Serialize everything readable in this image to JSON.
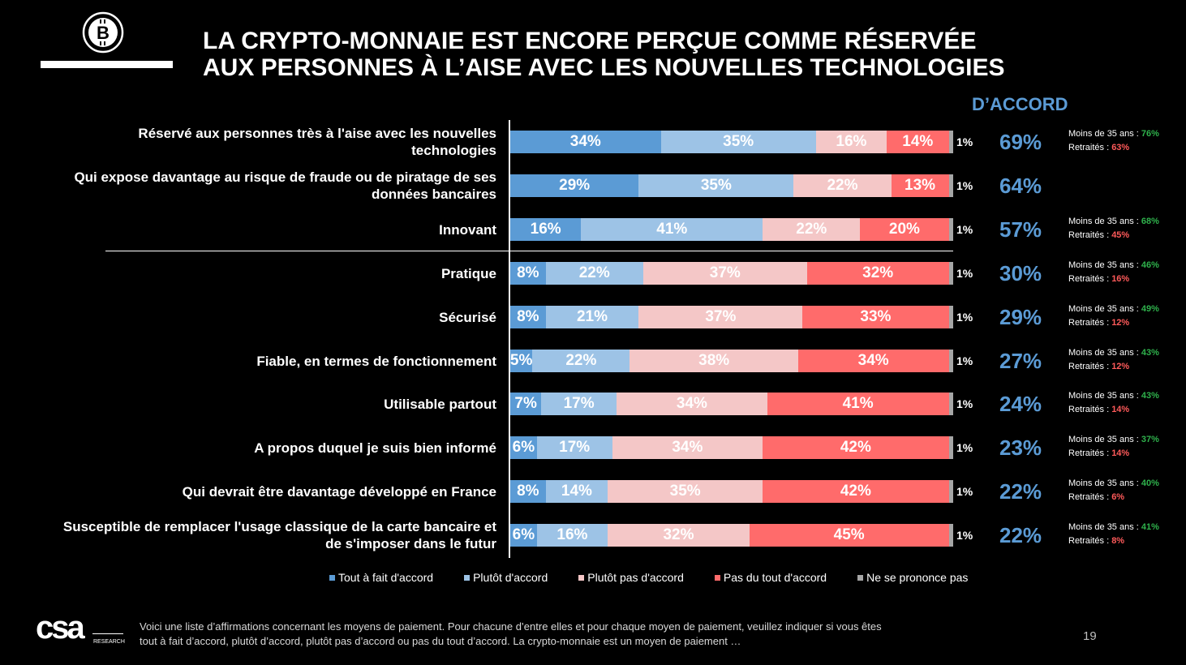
{
  "title": {
    "line1": "LA CRYPTO-MONNAIE EST ENCORE PERÇUE COMME RÉSERVÉE",
    "line2": "AUX PERSONNES À L’AISE AVEC LES NOUVELLES TECHNOLOGIES"
  },
  "accord_header": "D’ACCORD",
  "colors": {
    "tout_a_fait": "#5b9bd5",
    "plutot": "#9dc3e6",
    "plutot_pas": "#f4c7c7",
    "pas_du_tout": "#ff6b6b",
    "nsp": "#a6a6a6",
    "accent": "#5b9bd5"
  },
  "chart_data": {
    "type": "bar",
    "orientation": "horizontal-stacked-100",
    "unit": "%",
    "series_names": [
      "Tout à fait d'accord",
      "Plutôt d'accord",
      "Plutôt pas d'accord",
      "Pas du tout d'accord",
      "Ne se prononce pas"
    ],
    "rows": [
      {
        "label_lines": [
          "Réservé aux personnes très à l'aise avec les nouvelles",
          "technologies"
        ],
        "values": [
          34,
          35,
          16,
          14,
          1
        ],
        "labels": [
          "34%",
          "35%",
          "16%",
          "14%",
          "1%"
        ],
        "total": "69%",
        "sub_young": "Moins de 35 ans : ",
        "sub_young_val": "76%",
        "sub_ret": "Retraités : ",
        "sub_ret_val": "63%"
      },
      {
        "label_lines": [
          "Qui expose davantage au risque de fraude ou de piratage de ses",
          "données bancaires"
        ],
        "values": [
          29,
          35,
          22,
          13,
          1
        ],
        "labels": [
          "29%",
          "35%",
          "22%",
          "13%",
          "1%"
        ],
        "total": "64%"
      },
      {
        "label_lines": [
          "Innovant"
        ],
        "values": [
          16,
          41,
          22,
          20,
          1
        ],
        "labels": [
          "16%",
          "41%",
          "22%",
          "20%",
          "1%"
        ],
        "total": "57%",
        "sub_young": "Moins de 35 ans : ",
        "sub_young_val": "68%",
        "sub_ret": "Retraités : ",
        "sub_ret_val": "45%"
      },
      {
        "label_lines": [
          "Pratique"
        ],
        "values": [
          8,
          22,
          37,
          32,
          1
        ],
        "labels": [
          "8%",
          "22%",
          "37%",
          "32%",
          "1%"
        ],
        "total": "30%",
        "sub_young": "Moins de 35 ans : ",
        "sub_young_val": "46%",
        "sub_ret": "Retraités : ",
        "sub_ret_val": "16%"
      },
      {
        "label_lines": [
          "Sécurisé"
        ],
        "values": [
          8,
          21,
          37,
          33,
          1
        ],
        "labels": [
          "8%",
          "21%",
          "37%",
          "33%",
          "1%"
        ],
        "total": "29%",
        "sub_young": "Moins de 35 ans : ",
        "sub_young_val": "49%",
        "sub_ret": "Retraités : ",
        "sub_ret_val": "12%"
      },
      {
        "label_lines": [
          "Fiable, en termes de fonctionnement"
        ],
        "values": [
          5,
          22,
          38,
          34,
          1
        ],
        "labels": [
          "5%",
          "22%",
          "38%",
          "34%",
          "1%"
        ],
        "total": "27%",
        "sub_young": "Moins de 35 ans : ",
        "sub_young_val": "43%",
        "sub_ret": "Retraités : ",
        "sub_ret_val": "12%"
      },
      {
        "label_lines": [
          "Utilisable partout"
        ],
        "values": [
          7,
          17,
          34,
          41,
          1
        ],
        "labels": [
          "7%",
          "17%",
          "34%",
          "41%",
          "1%"
        ],
        "total": "24%",
        "sub_young": "Moins de 35 ans : ",
        "sub_young_val": "43%",
        "sub_ret": "Retraités : ",
        "sub_ret_val": "14%"
      },
      {
        "label_lines": [
          "A propos duquel je suis bien informé"
        ],
        "values": [
          6,
          17,
          34,
          42,
          1
        ],
        "labels": [
          "6%",
          "17%",
          "34%",
          "42%",
          "1%"
        ],
        "total": "23%",
        "sub_young": "Moins de 35 ans : ",
        "sub_young_val": "37%",
        "sub_ret": "Retraités : ",
        "sub_ret_val": "14%"
      },
      {
        "label_lines": [
          "Qui devrait être davantage développé en France"
        ],
        "values": [
          8,
          14,
          35,
          42,
          1
        ],
        "labels": [
          "8%",
          "14%",
          "35%",
          "42%",
          "1%"
        ],
        "total": "22%",
        "sub_young": "Moins de 35 ans : ",
        "sub_young_val": "40%",
        "sub_ret": "Retraités : ",
        "sub_ret_val": "6%"
      },
      {
        "label_lines": [
          "Susceptible de remplacer l'usage classique de la carte bancaire et",
          "de s'imposer dans le futur"
        ],
        "values": [
          6,
          16,
          32,
          45,
          1
        ],
        "labels": [
          "6%",
          "16%",
          "32%",
          "45%",
          "1%"
        ],
        "total": "22%",
        "sub_young": "Moins de 35 ans : ",
        "sub_young_val": "41%",
        "sub_ret": "Retraités : ",
        "sub_ret_val": "8%"
      }
    ]
  },
  "legend": [
    "Tout à fait d'accord",
    "Plutôt d'accord",
    "Plutôt pas d'accord",
    "Pas du tout d'accord",
    "Ne se prononce pas"
  ],
  "logo": {
    "name": "csa",
    "tagline": "RESEARCH"
  },
  "footnote": {
    "line1": "Voici une liste d’affirmations concernant les moyens de paiement. Pour chacune d’entre elles et pour chaque moyen de paiement, veuillez indiquer si vous êtes",
    "line2": "tout à fait d’accord, plutôt d’accord, plutôt pas d’accord ou pas du tout d’accord. La crypto-monnaie est un moyen de paiement …"
  },
  "page_number": "19"
}
